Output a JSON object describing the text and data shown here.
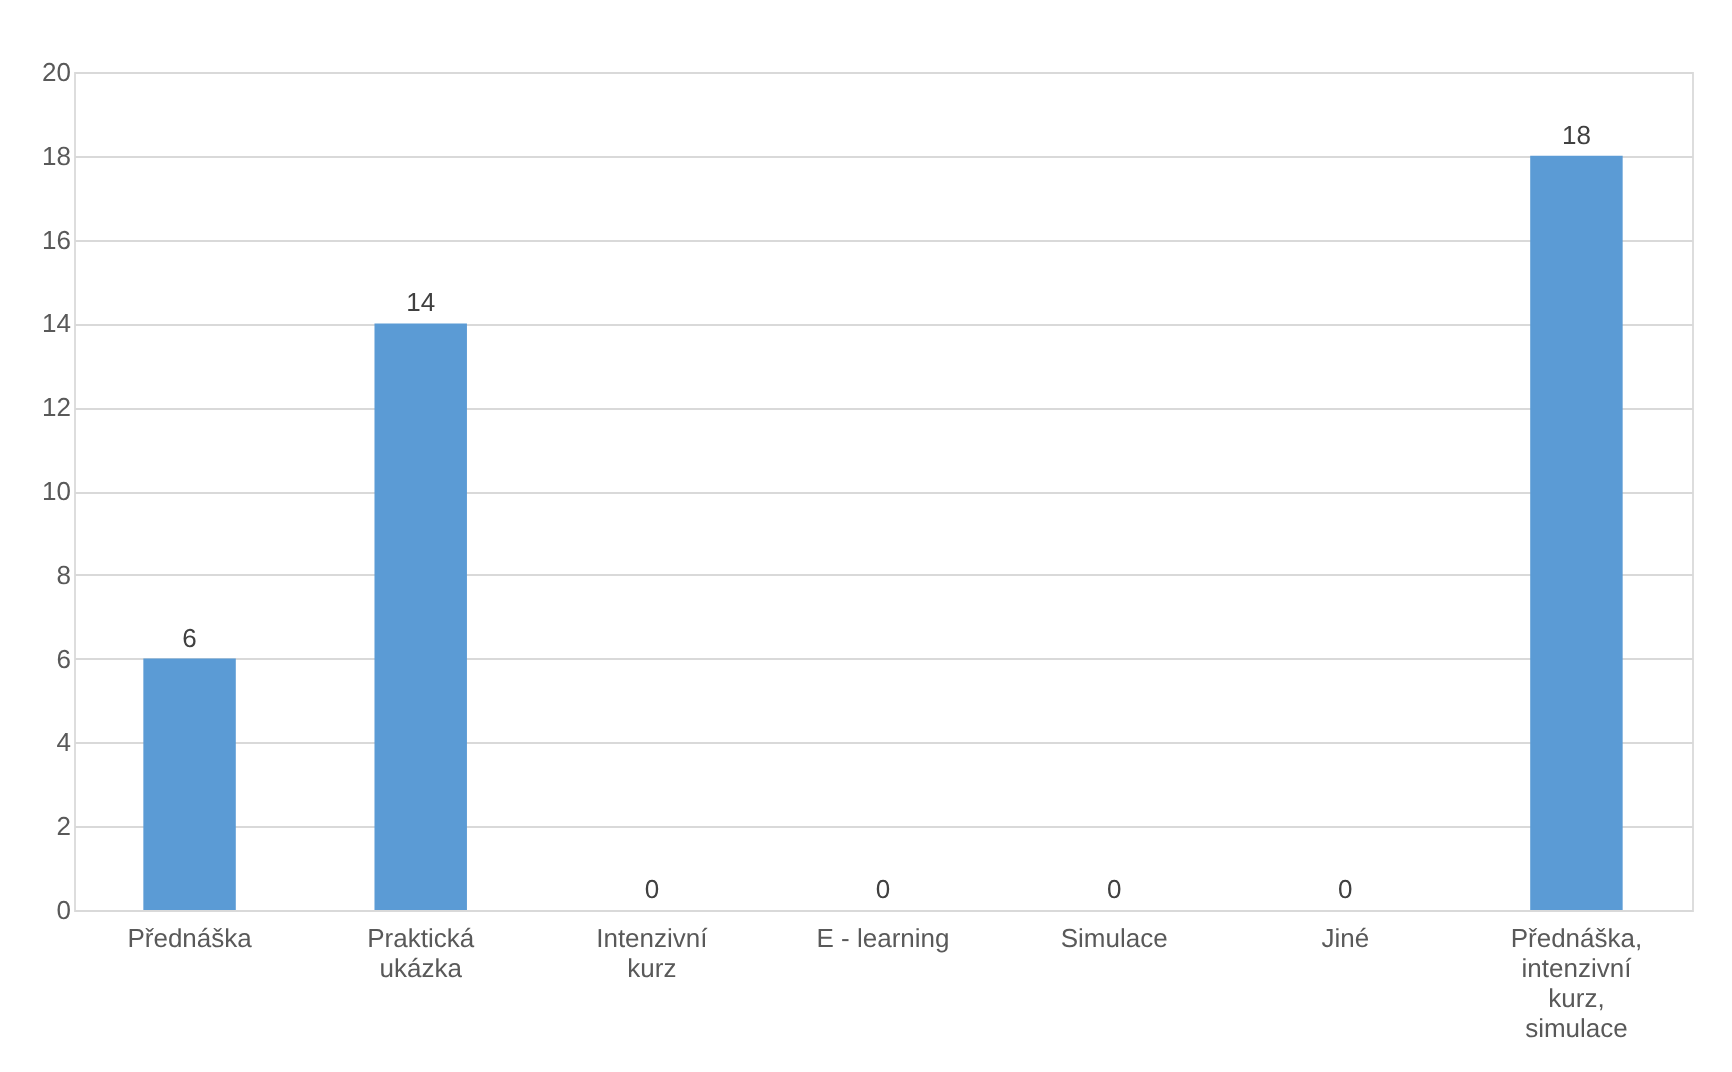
{
  "chart_data": {
    "type": "bar",
    "categories": [
      "Přednáška",
      "Praktická ukázka",
      "Intenzivní kurz",
      "E - learning",
      "Simulace",
      "Jiné",
      "Přednáška, intenzivní kurz, simulace"
    ],
    "values": [
      6,
      14,
      0,
      0,
      0,
      0,
      18
    ],
    "color": "#5b9bd5",
    "ylim": [
      0,
      20
    ],
    "yticks": [
      0,
      2,
      4,
      6,
      8,
      10,
      12,
      14,
      16,
      18,
      20
    ],
    "grid": "y",
    "data_labels": true
  }
}
